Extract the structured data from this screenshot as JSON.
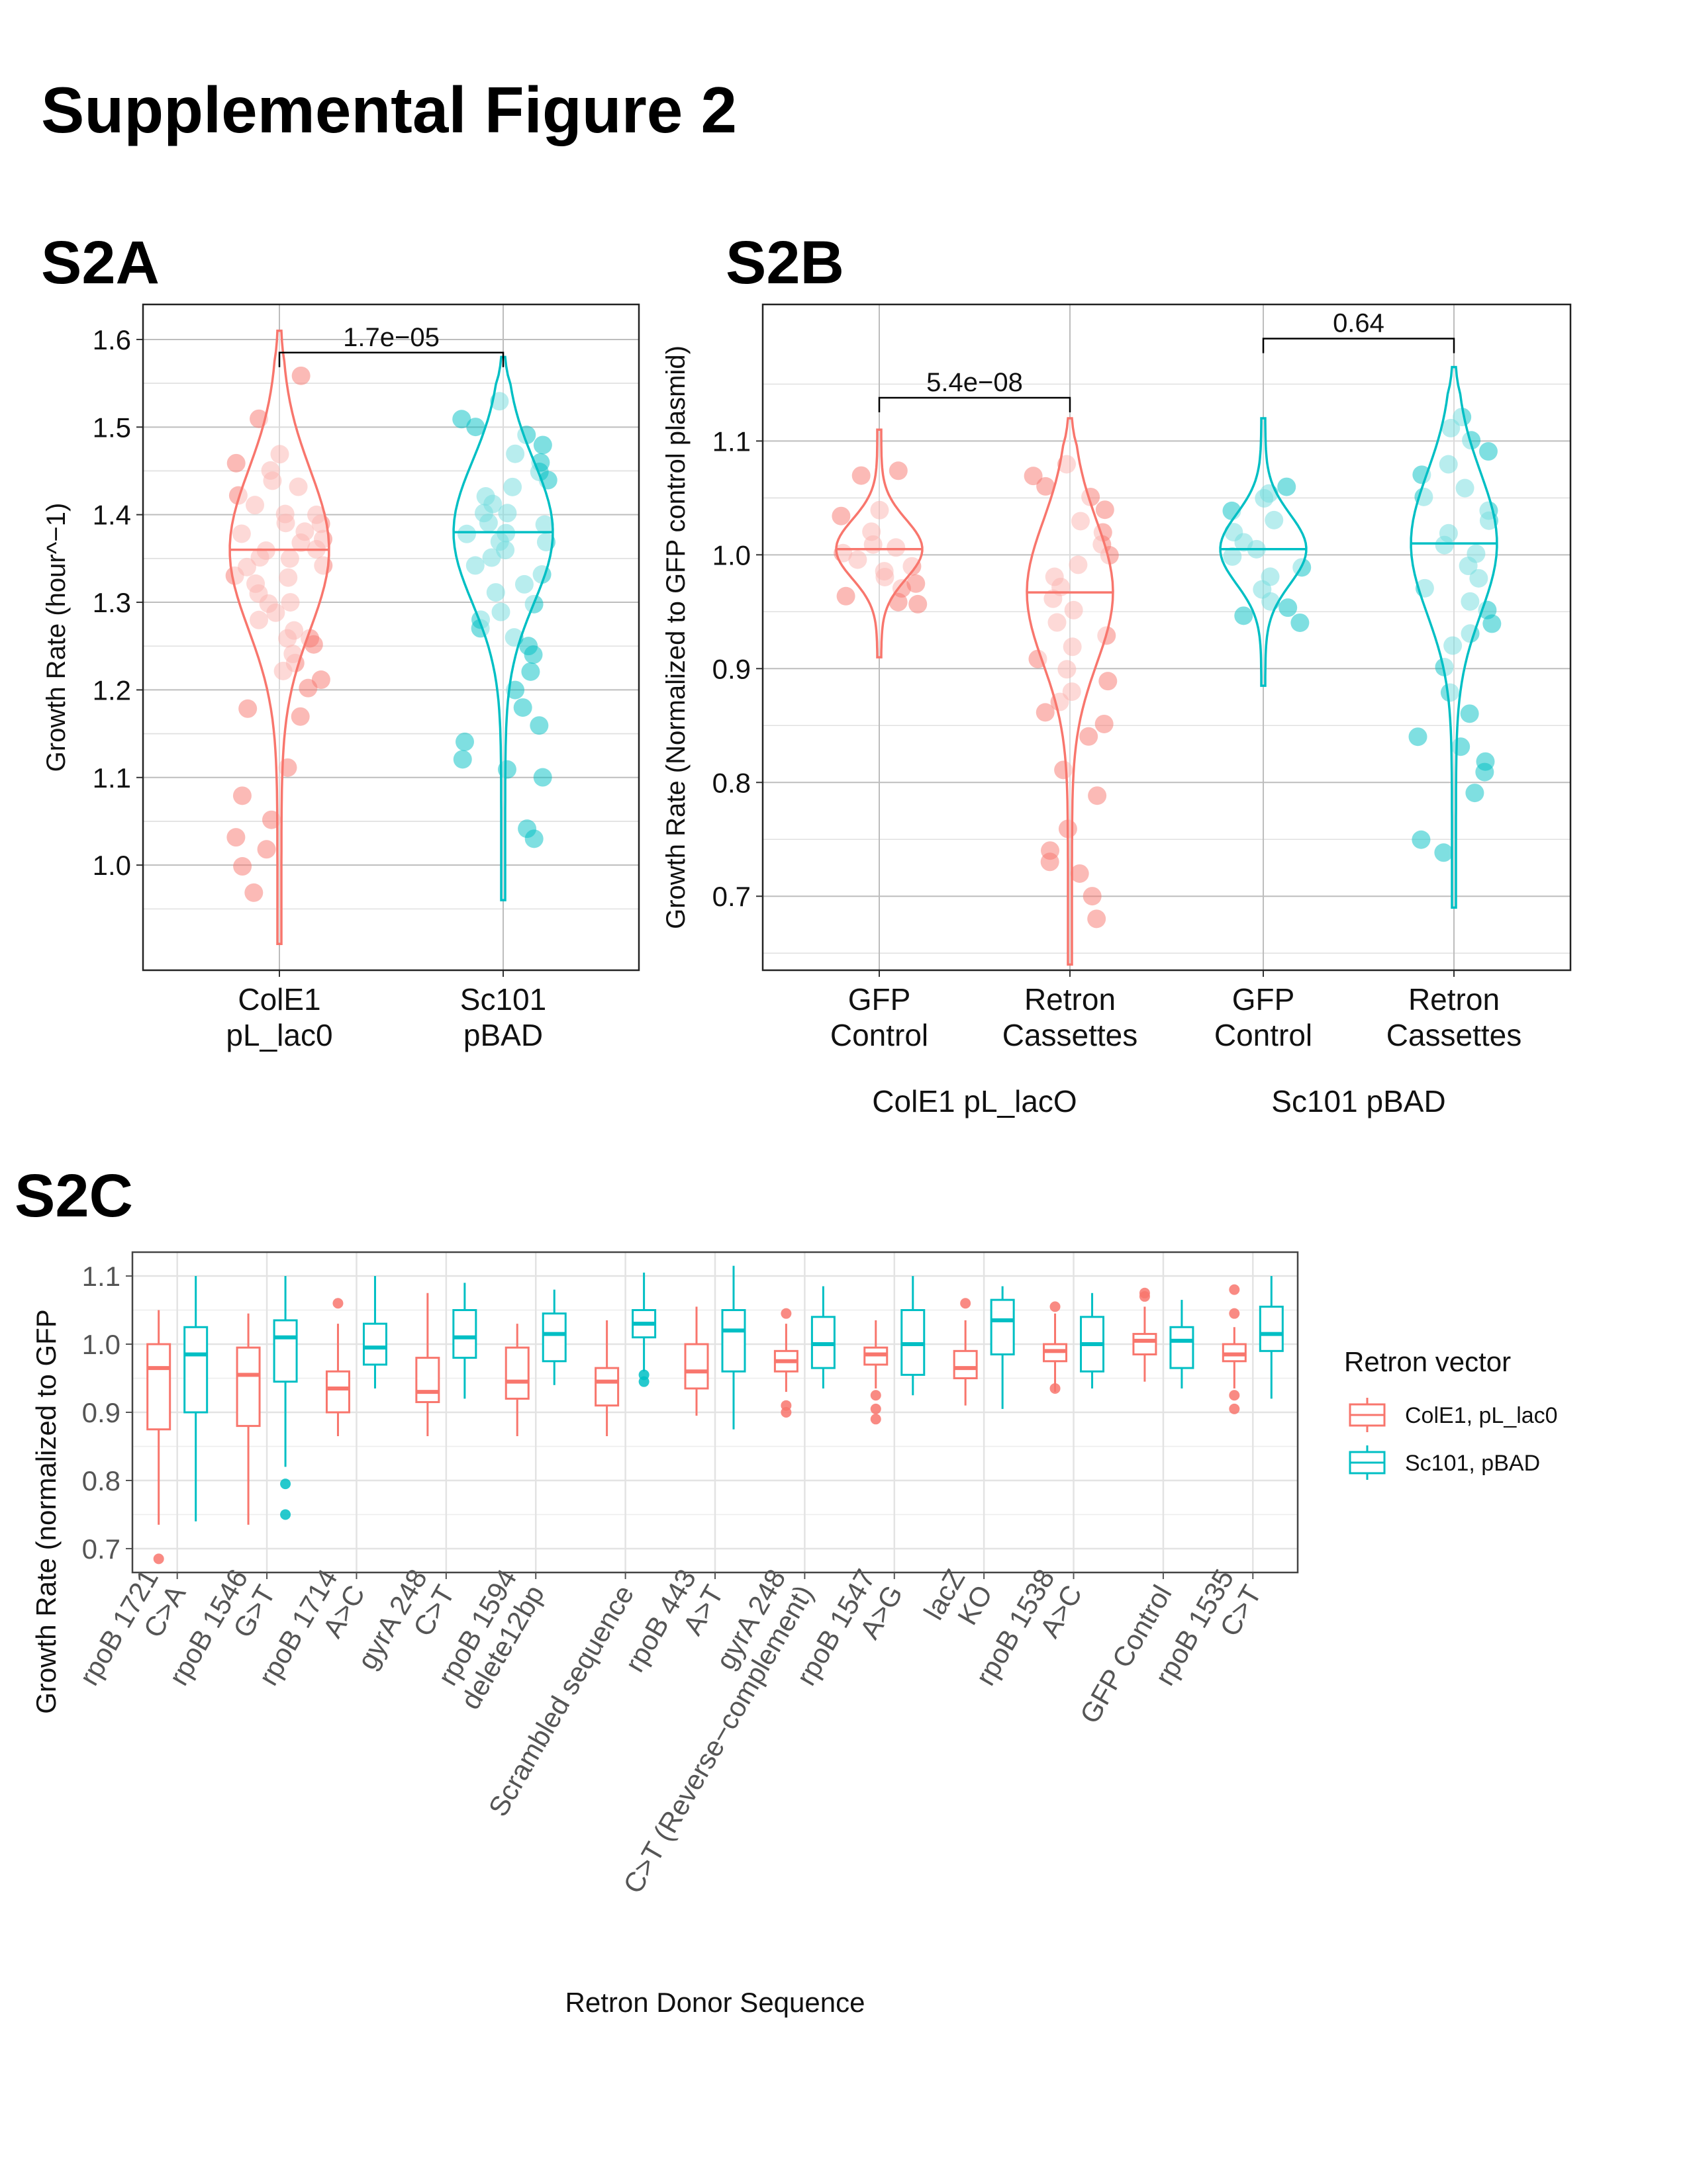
{
  "figure_title": "Supplemental Figure 2",
  "panel_labels": {
    "a": "S2A",
    "b": "S2B",
    "c": "S2C"
  },
  "colors": {
    "cole1": "#F8766D",
    "sc101": "#00BFC4",
    "grid": "#BDBDBD",
    "grid_minor": "#E0E0E0"
  },
  "chart_data": [
    {
      "id": "S2A",
      "type": "violin+jitter",
      "title": "",
      "ylabel": "Growth Rate (hour^−1)",
      "xlabel": "",
      "ylim": [
        0.88,
        1.64
      ],
      "yticks": [
        1.0,
        1.1,
        1.2,
        1.3,
        1.4,
        1.5,
        1.6
      ],
      "ytick_labels": [
        "1.0",
        "1.1",
        "1.2",
        "1.3",
        "1.4",
        "1.5",
        "1.6"
      ],
      "grid": true,
      "categories": [
        {
          "line1": "ColE1",
          "line2": "pL_lac0",
          "color_key": "cole1",
          "median": 1.36,
          "violin_min": 0.91,
          "violin_max": 1.61,
          "points": [
            1.56,
            1.51,
            1.47,
            1.46,
            1.45,
            1.44,
            1.43,
            1.42,
            1.41,
            1.4,
            1.4,
            1.39,
            1.39,
            1.38,
            1.38,
            1.37,
            1.37,
            1.36,
            1.36,
            1.35,
            1.35,
            1.34,
            1.34,
            1.33,
            1.33,
            1.32,
            1.31,
            1.3,
            1.3,
            1.29,
            1.28,
            1.27,
            1.26,
            1.26,
            1.25,
            1.24,
            1.23,
            1.22,
            1.21,
            1.2,
            1.18,
            1.17,
            1.11,
            1.08,
            1.05,
            1.03,
            1.02,
            1.0,
            0.97
          ]
        },
        {
          "line1": "Sc101",
          "line2": "pBAD",
          "color_key": "sc101",
          "median": 1.38,
          "violin_min": 0.96,
          "violin_max": 1.58,
          "points": [
            1.53,
            1.51,
            1.5,
            1.49,
            1.48,
            1.47,
            1.46,
            1.45,
            1.44,
            1.43,
            1.42,
            1.41,
            1.4,
            1.4,
            1.39,
            1.39,
            1.38,
            1.38,
            1.37,
            1.37,
            1.36,
            1.35,
            1.34,
            1.33,
            1.32,
            1.31,
            1.3,
            1.29,
            1.28,
            1.27,
            1.26,
            1.25,
            1.24,
            1.22,
            1.2,
            1.18,
            1.16,
            1.14,
            1.12,
            1.11,
            1.1,
            1.04,
            1.03
          ]
        }
      ],
      "comparisons": [
        {
          "from": 0,
          "to": 1,
          "label": "1.7e−05",
          "y": 1.585
        }
      ]
    },
    {
      "id": "S2B",
      "type": "violin+jitter",
      "title": "",
      "ylabel": "Growth Rate (Normalized to GFP control plasmid)",
      "xlabel": "",
      "ylim": [
        0.635,
        1.22
      ],
      "yticks": [
        0.7,
        0.8,
        0.9,
        1.0,
        1.1
      ],
      "ytick_labels": [
        "0.7",
        "0.8",
        "0.9",
        "1.0",
        "1.1"
      ],
      "grid": true,
      "group_labels": [
        {
          "label": "ColE1 pL_lacO",
          "span": [
            0,
            1
          ]
        },
        {
          "label": "Sc101 pBAD",
          "span": [
            2,
            3
          ]
        }
      ],
      "categories": [
        {
          "line1": "GFP",
          "line2": "Control",
          "color_key": "cole1",
          "median": 1.005,
          "violin_min": 0.91,
          "violin_max": 1.11,
          "points": [
            1.075,
            1.07,
            1.04,
            1.035,
            1.02,
            1.01,
            1.005,
            1.0,
            0.995,
            0.99,
            0.985,
            0.98,
            0.975,
            0.97,
            0.965,
            0.96,
            0.955
          ]
        },
        {
          "line1": "Retron",
          "line2": "Cassettes",
          "color_key": "cole1",
          "median": 0.967,
          "violin_min": 0.64,
          "violin_max": 1.12,
          "points": [
            1.08,
            1.07,
            1.06,
            1.05,
            1.04,
            1.03,
            1.02,
            1.01,
            1.0,
            0.99,
            0.98,
            0.97,
            0.96,
            0.95,
            0.94,
            0.93,
            0.92,
            0.91,
            0.9,
            0.89,
            0.88,
            0.87,
            0.86,
            0.85,
            0.84,
            0.81,
            0.79,
            0.76,
            0.74,
            0.73,
            0.72,
            0.7,
            0.68
          ]
        },
        {
          "line1": "GFP",
          "line2": "Control",
          "color_key": "sc101",
          "median": 1.005,
          "violin_min": 0.885,
          "violin_max": 1.12,
          "points": [
            1.06,
            1.055,
            1.05,
            1.04,
            1.03,
            1.02,
            1.01,
            1.005,
            1.0,
            0.99,
            0.98,
            0.97,
            0.96,
            0.955,
            0.945,
            0.94
          ]
        },
        {
          "line1": "Retron",
          "line2": "Cassettes",
          "color_key": "sc101",
          "median": 1.01,
          "violin_min": 0.69,
          "violin_max": 1.165,
          "points": [
            1.12,
            1.11,
            1.1,
            1.09,
            1.08,
            1.07,
            1.06,
            1.05,
            1.04,
            1.03,
            1.02,
            1.01,
            1.0,
            0.99,
            0.98,
            0.97,
            0.96,
            0.95,
            0.94,
            0.93,
            0.92,
            0.9,
            0.88,
            0.86,
            0.84,
            0.83,
            0.82,
            0.81,
            0.79,
            0.75,
            0.74
          ]
        }
      ],
      "comparisons": [
        {
          "from": 0,
          "to": 1,
          "label": "5.4e−08",
          "y": 1.138
        },
        {
          "from": 2,
          "to": 3,
          "label": "0.64",
          "y": 1.19
        }
      ]
    },
    {
      "id": "S2C",
      "type": "boxplot",
      "title": "",
      "ylabel": "Growth Rate (normalized to GFP",
      "xlabel": "Retron Donor Sequence",
      "ylim": [
        0.665,
        1.135
      ],
      "yticks": [
        0.7,
        0.8,
        0.9,
        1.0,
        1.1
      ],
      "ytick_labels": [
        "0.7",
        "0.8",
        "0.9",
        "1.0",
        "1.1"
      ],
      "grid": true,
      "legend": {
        "title": "Retron vector",
        "position": "right",
        "entries": [
          {
            "label": "ColE1, pL_lac0",
            "color_key": "cole1"
          },
          {
            "label": "Sc101, pBAD",
            "color_key": "sc101"
          }
        ]
      },
      "categories": [
        [
          "rpoB 1721",
          "C>A"
        ],
        [
          "rpoB 1546",
          "G>T"
        ],
        [
          "rpoB 1714",
          "A>C"
        ],
        [
          "gyrA 248",
          "C>T"
        ],
        [
          "rpoB 1594",
          "delete12bp"
        ],
        [
          "Scrambled sequence"
        ],
        [
          "rpoB 443",
          "A>T"
        ],
        [
          "gyrA 248",
          "C>T (Reverse−complement)"
        ],
        [
          "rpoB 1547",
          "A>G"
        ],
        [
          "lacZ",
          "KO"
        ],
        [
          "rpoB 1538",
          "A>C"
        ],
        [
          "GFP Control"
        ],
        [
          "rpoB 1535",
          "C>T"
        ]
      ],
      "series": [
        {
          "name": "ColE1, pL_lac0",
          "color_key": "cole1",
          "boxes": [
            {
              "min": 0.735,
              "q1": 0.875,
              "median": 0.965,
              "q3": 1.0,
              "max": 1.05,
              "outliers": [
                0.685
              ]
            },
            {
              "min": 0.735,
              "q1": 0.88,
              "median": 0.955,
              "q3": 0.995,
              "max": 1.045,
              "outliers": []
            },
            {
              "min": 0.865,
              "q1": 0.9,
              "median": 0.935,
              "q3": 0.96,
              "max": 1.03,
              "outliers": [
                1.06
              ]
            },
            {
              "min": 0.865,
              "q1": 0.915,
              "median": 0.93,
              "q3": 0.98,
              "max": 1.075,
              "outliers": []
            },
            {
              "min": 0.865,
              "q1": 0.92,
              "median": 0.945,
              "q3": 0.995,
              "max": 1.03,
              "outliers": []
            },
            {
              "min": 0.865,
              "q1": 0.91,
              "median": 0.945,
              "q3": 0.965,
              "max": 1.035,
              "outliers": []
            },
            {
              "min": 0.895,
              "q1": 0.935,
              "median": 0.96,
              "q3": 1.0,
              "max": 1.055,
              "outliers": []
            },
            {
              "min": 0.93,
              "q1": 0.96,
              "median": 0.975,
              "q3": 0.99,
              "max": 1.03,
              "outliers": [
                1.045,
                0.91,
                0.9
              ]
            },
            {
              "min": 0.935,
              "q1": 0.97,
              "median": 0.985,
              "q3": 0.995,
              "max": 1.035,
              "outliers": [
                0.925,
                0.905,
                0.89
              ]
            },
            {
              "min": 0.91,
              "q1": 0.95,
              "median": 0.965,
              "q3": 0.99,
              "max": 1.035,
              "outliers": [
                1.06
              ]
            },
            {
              "min": 0.93,
              "q1": 0.975,
              "median": 0.99,
              "q3": 1.0,
              "max": 1.045,
              "outliers": [
                1.055,
                0.935
              ]
            },
            {
              "min": 0.945,
              "q1": 0.985,
              "median": 1.005,
              "q3": 1.015,
              "max": 1.055,
              "outliers": [
                1.075,
                1.07
              ]
            },
            {
              "min": 0.935,
              "q1": 0.975,
              "median": 0.985,
              "q3": 1.0,
              "max": 1.025,
              "outliers": [
                1.08,
                1.045,
                0.925,
                0.905
              ]
            }
          ]
        },
        {
          "name": "Sc101, pBAD",
          "color_key": "sc101",
          "boxes": [
            {
              "min": 0.74,
              "q1": 0.9,
              "median": 0.985,
              "q3": 1.025,
              "max": 1.1,
              "outliers": []
            },
            {
              "min": 0.82,
              "q1": 0.945,
              "median": 1.01,
              "q3": 1.035,
              "max": 1.1,
              "outliers": [
                0.795,
                0.75
              ]
            },
            {
              "min": 0.935,
              "q1": 0.97,
              "median": 0.995,
              "q3": 1.03,
              "max": 1.1,
              "outliers": []
            },
            {
              "min": 0.92,
              "q1": 0.98,
              "median": 1.01,
              "q3": 1.05,
              "max": 1.09,
              "outliers": []
            },
            {
              "min": 0.94,
              "q1": 0.975,
              "median": 1.015,
              "q3": 1.045,
              "max": 1.08,
              "outliers": []
            },
            {
              "min": 0.96,
              "q1": 1.01,
              "median": 1.03,
              "q3": 1.05,
              "max": 1.105,
              "outliers": [
                0.955,
                0.945
              ]
            },
            {
              "min": 0.875,
              "q1": 0.96,
              "median": 1.02,
              "q3": 1.05,
              "max": 1.115,
              "outliers": []
            },
            {
              "min": 0.935,
              "q1": 0.965,
              "median": 1.0,
              "q3": 1.04,
              "max": 1.085,
              "outliers": []
            },
            {
              "min": 0.925,
              "q1": 0.955,
              "median": 1.0,
              "q3": 1.05,
              "max": 1.1,
              "outliers": []
            },
            {
              "min": 0.905,
              "q1": 0.985,
              "median": 1.035,
              "q3": 1.065,
              "max": 1.085,
              "outliers": []
            },
            {
              "min": 0.935,
              "q1": 0.96,
              "median": 1.0,
              "q3": 1.04,
              "max": 1.075,
              "outliers": []
            },
            {
              "min": 0.935,
              "q1": 0.965,
              "median": 1.005,
              "q3": 1.025,
              "max": 1.065,
              "outliers": []
            },
            {
              "min": 0.92,
              "q1": 0.99,
              "median": 1.015,
              "q3": 1.055,
              "max": 1.1,
              "outliers": []
            }
          ]
        }
      ]
    }
  ]
}
